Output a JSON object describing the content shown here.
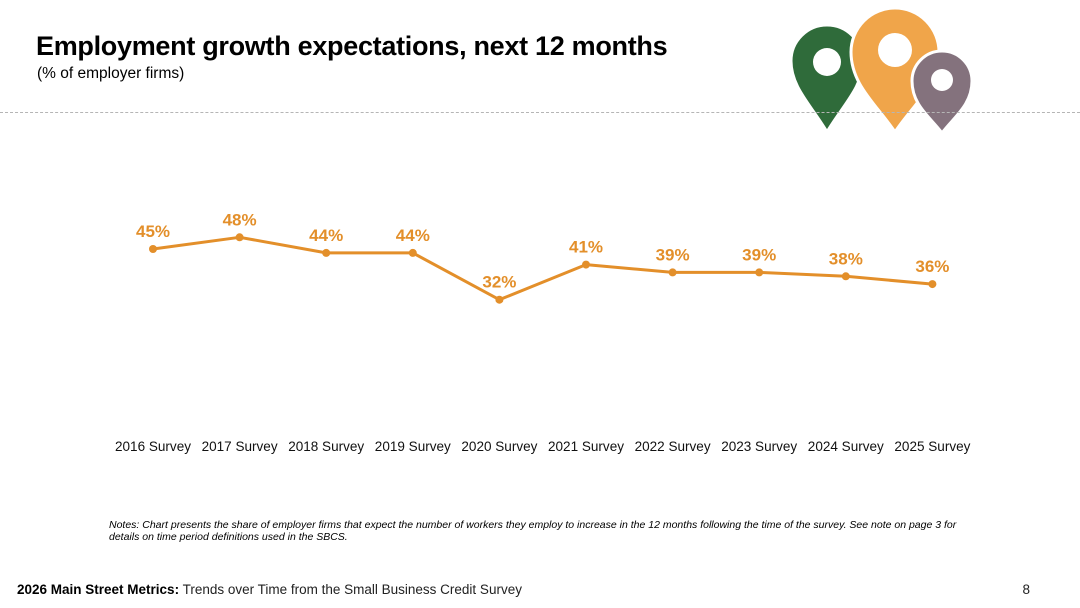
{
  "header": {
    "title": "Employment growth expectations, next 12 months",
    "subtitle": "(% of employer firms)"
  },
  "logo": {
    "icons": [
      "map-pin-green-icon",
      "map-pin-orange-icon",
      "map-pin-purple-icon"
    ],
    "colors": [
      "#2f6b3a",
      "#f0a54a",
      "#84727d"
    ]
  },
  "chart_data": {
    "type": "line",
    "title": "",
    "xlabel": "",
    "ylabel": "",
    "categories": [
      "2016 Survey",
      "2017 Survey",
      "2018 Survey",
      "2019 Survey",
      "2020 Survey",
      "2021 Survey",
      "2022 Survey",
      "2023 Survey",
      "2024 Survey",
      "2025 Survey"
    ],
    "series": [
      {
        "values": [
          45,
          48,
          44,
          44,
          32,
          41,
          39,
          39,
          38,
          36
        ],
        "labels": [
          "45%",
          "48%",
          "44%",
          "44%",
          "32%",
          "41%",
          "39%",
          "39%",
          "38%",
          "36%"
        ],
        "color": "#e38f2a"
      }
    ],
    "ylim": [
      0,
      60
    ],
    "grid": false,
    "legend": "none"
  },
  "notes": "Notes: Chart presents the share of employer firms that expect the number of workers they employ to increase in the 12 months following the time of the survey. See note on page 3 for details on time period definitions used in the SBCS.",
  "footer": {
    "bold": "2026 Main Street Metrics:",
    "text": " Trends over Time from the Small Business Credit Survey",
    "page": "8"
  }
}
